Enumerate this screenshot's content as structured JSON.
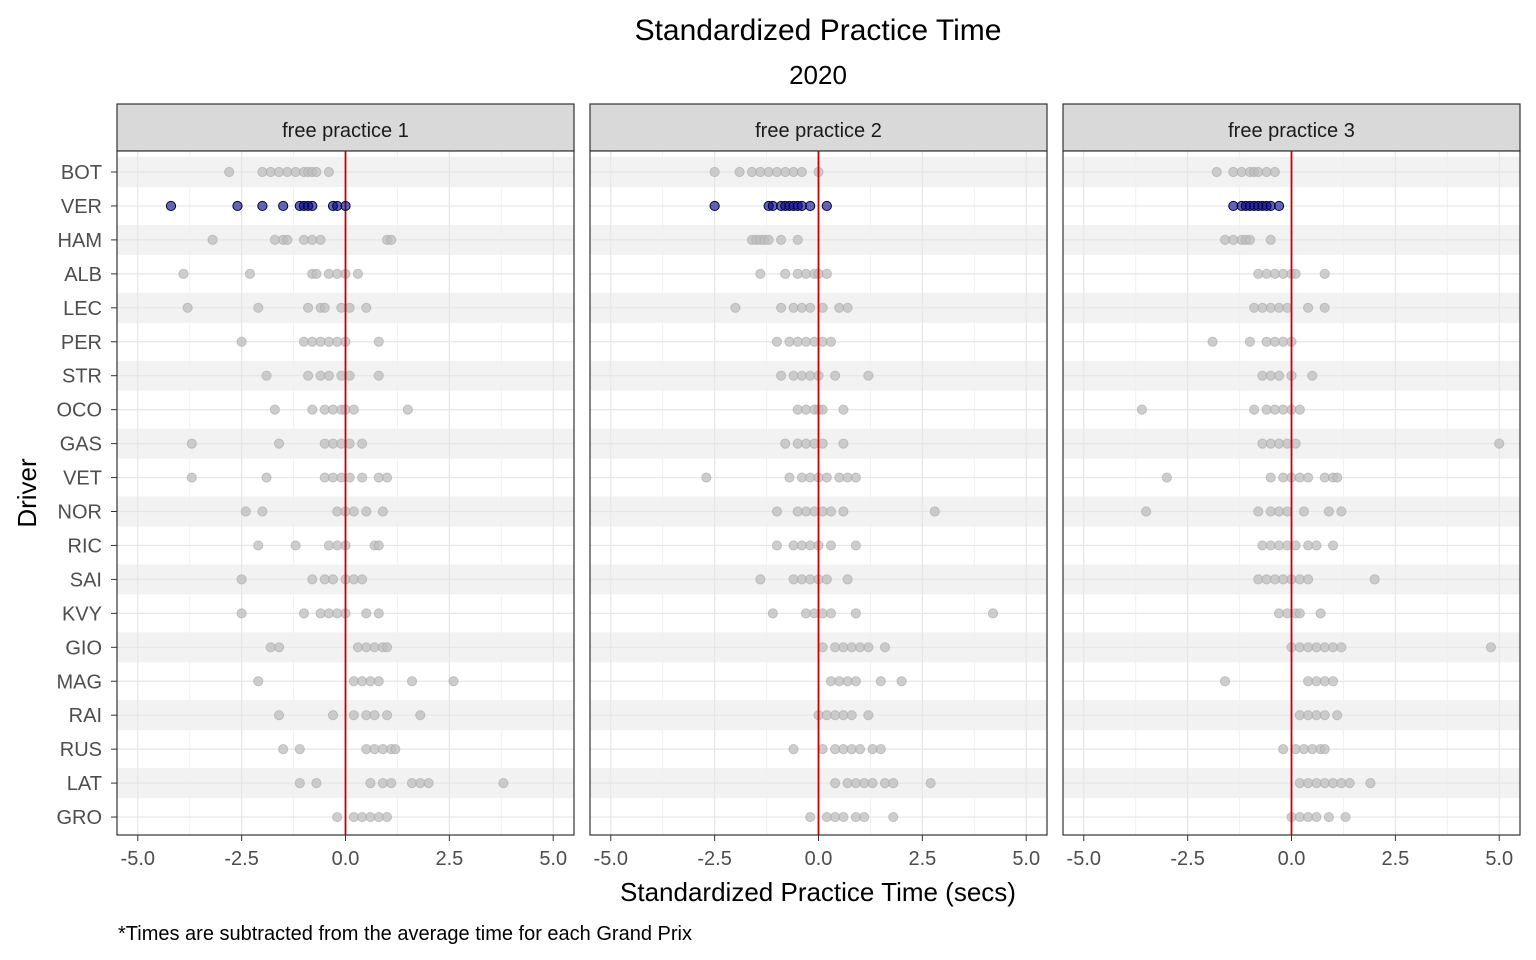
{
  "chart_data": {
    "type": "scatter",
    "title": "Standardized Practice Time",
    "subtitle": "2020",
    "xlabel": "Standardized Practice Time (secs)",
    "ylabel": "Driver",
    "caption": "*Times are subtracted from the average time for each Grand Prix",
    "xlim": [
      -5.5,
      5.5
    ],
    "x_ticks": [
      -5,
      -2.5,
      0,
      2.5,
      5
    ],
    "x_tick_labels": [
      "-5.0",
      "-2.5",
      "0.0",
      "2.5",
      "5.0"
    ],
    "reference_line_x": 0,
    "highlight_driver": "VER",
    "colors": {
      "highlight": "#00008b",
      "points": "#bdbdbd",
      "reference": "#cc0000",
      "strip": "#d9d9d9",
      "band": "#f2f2f2"
    },
    "drivers": [
      "BOT",
      "VER",
      "HAM",
      "ALB",
      "LEC",
      "PER",
      "STR",
      "OCO",
      "GAS",
      "VET",
      "NOR",
      "RIC",
      "SAI",
      "KVY",
      "GIO",
      "MAG",
      "RAI",
      "RUS",
      "LAT",
      "GRO"
    ],
    "facets": [
      {
        "label": "free practice 1",
        "points": {
          "BOT": [
            -2.8,
            -2,
            -1.8,
            -1.6,
            -1.4,
            -1.2,
            -1,
            -0.9,
            -0.8,
            -0.7,
            -0.4
          ],
          "VER": [
            -4.2,
            -2.6,
            -2,
            -1.5,
            -1.1,
            -1,
            -0.9,
            -0.8,
            -0.3,
            -0.2,
            0
          ],
          "HAM": [
            -3.2,
            -1.7,
            -1.5,
            -1.4,
            -1,
            -0.8,
            -0.6,
            1,
            1.1
          ],
          "ALB": [
            -3.9,
            -2.3,
            -0.8,
            -0.7,
            -0.4,
            -0.2,
            0,
            0.3
          ],
          "LEC": [
            -3.8,
            -2.1,
            -0.9,
            -0.6,
            -0.5,
            -0.1,
            0.1,
            0.5
          ],
          "PER": [
            -2.5,
            -1,
            -0.8,
            -0.6,
            -0.4,
            -0.2,
            0,
            0.8
          ],
          "STR": [
            -1.9,
            -0.9,
            -0.6,
            -0.4,
            -0.1,
            0.1,
            0.8
          ],
          "OCO": [
            -1.7,
            -0.8,
            -0.5,
            -0.3,
            -0.1,
            0,
            0.2,
            1.5
          ],
          "GAS": [
            -3.7,
            -1.6,
            -0.5,
            -0.3,
            -0.1,
            0.1,
            0.4
          ],
          "VET": [
            -3.7,
            -1.9,
            -0.5,
            -0.3,
            -0.1,
            0.1,
            0.4,
            0.8,
            1
          ],
          "NOR": [
            -2.4,
            -2,
            -0.2,
            0,
            0.2,
            0.5,
            0.9
          ],
          "RIC": [
            -2.1,
            -1.2,
            -0.4,
            -0.2,
            0,
            0.7,
            0.8
          ],
          "SAI": [
            -2.5,
            -0.8,
            -0.5,
            -0.3,
            0,
            0.2,
            0.4
          ],
          "KVY": [
            -2.5,
            -1,
            -0.6,
            -0.4,
            -0.2,
            0,
            0.5,
            0.8
          ],
          "GIO": [
            -1.8,
            -1.6,
            0.3,
            0.5,
            0.7,
            0.9,
            1
          ],
          "MAG": [
            -2.1,
            0.2,
            0.4,
            0.6,
            0.8,
            1.6,
            2.6
          ],
          "RAI": [
            -1.6,
            -0.3,
            0.2,
            0.5,
            0.7,
            1,
            1.8
          ],
          "RUS": [
            -1.5,
            -1.1,
            0.5,
            0.7,
            0.9,
            1.1,
            1.2
          ],
          "LAT": [
            -1.1,
            -0.7,
            0.6,
            0.9,
            1.1,
            1.6,
            1.8,
            2,
            3.8
          ],
          "GRO": [
            -0.2,
            0.2,
            0.4,
            0.6,
            0.8,
            1
          ]
        }
      },
      {
        "label": "free practice 2",
        "points": {
          "BOT": [
            -2.5,
            -1.9,
            -1.6,
            -1.4,
            -1.2,
            -1,
            -0.8,
            -0.6,
            -0.4,
            0
          ],
          "VER": [
            -2.5,
            -1.2,
            -1.1,
            -0.9,
            -0.8,
            -0.7,
            -0.6,
            -0.5,
            -0.4,
            -0.2,
            0.2
          ],
          "HAM": [
            -1.6,
            -1.5,
            -1.4,
            -1.3,
            -1.2,
            -0.9,
            -0.5
          ],
          "ALB": [
            -1.4,
            -0.8,
            -0.5,
            -0.3,
            -0.1,
            0,
            0.2
          ],
          "LEC": [
            -2,
            -0.9,
            -0.6,
            -0.4,
            -0.2,
            0.1,
            0.5,
            0.7
          ],
          "PER": [
            -1,
            -0.7,
            -0.5,
            -0.3,
            -0.1,
            0.1,
            0.3
          ],
          "STR": [
            -0.9,
            -0.6,
            -0.4,
            -0.2,
            0,
            0.4,
            1.2
          ],
          "OCO": [
            -0.5,
            -0.3,
            -0.1,
            0,
            0.1,
            0.6
          ],
          "GAS": [
            -0.8,
            -0.5,
            -0.3,
            -0.1,
            0.1,
            0.6
          ],
          "VET": [
            -2.7,
            -0.7,
            -0.4,
            -0.2,
            0,
            0.2,
            0.5,
            0.7,
            0.9
          ],
          "NOR": [
            -1,
            -0.5,
            -0.3,
            -0.1,
            0.1,
            0.3,
            0.6,
            2.8
          ],
          "RIC": [
            -1,
            -0.6,
            -0.4,
            -0.2,
            0,
            0.3,
            0.9
          ],
          "SAI": [
            -1.4,
            -0.6,
            -0.4,
            -0.2,
            0,
            0.2,
            0.7
          ],
          "KVY": [
            -1.1,
            -0.3,
            -0.1,
            0.1,
            0.3,
            0.9,
            4.2
          ],
          "GIO": [
            0.1,
            0.4,
            0.6,
            0.8,
            1,
            1.2,
            1.6
          ],
          "MAG": [
            0.3,
            0.5,
            0.7,
            0.9,
            1.5,
            2
          ],
          "RAI": [
            0,
            0.2,
            0.4,
            0.6,
            0.8,
            1.2
          ],
          "RUS": [
            -0.6,
            0.1,
            0.4,
            0.6,
            0.8,
            1,
            1.3,
            1.5
          ],
          "LAT": [
            0.4,
            0.7,
            0.9,
            1.1,
            1.3,
            1.6,
            1.8,
            2.7
          ],
          "GRO": [
            -0.2,
            0.2,
            0.4,
            0.6,
            0.9,
            1.1,
            1.8
          ]
        }
      },
      {
        "label": "free practice 3",
        "points": {
          "BOT": [
            -1.8,
            -1.4,
            -1.2,
            -1,
            -0.9,
            -0.8,
            -0.6,
            -0.4
          ],
          "VER": [
            -1.4,
            -1.2,
            -1.1,
            -1,
            -0.9,
            -0.8,
            -0.7,
            -0.6,
            -0.5,
            -0.3
          ],
          "HAM": [
            -1.6,
            -1.4,
            -1.2,
            -1.1,
            -1,
            -0.5
          ],
          "ALB": [
            -0.8,
            -0.6,
            -0.4,
            -0.2,
            0,
            0.1,
            0.8
          ],
          "LEC": [
            -0.9,
            -0.7,
            -0.5,
            -0.3,
            -0.1,
            0.4,
            0.8
          ],
          "PER": [
            -1.9,
            -1,
            -0.6,
            -0.4,
            -0.2,
            0
          ],
          "STR": [
            -0.7,
            -0.5,
            -0.3,
            0,
            0.5
          ],
          "OCO": [
            -3.6,
            -0.9,
            -0.6,
            -0.4,
            -0.2,
            0,
            0.2
          ],
          "GAS": [
            -0.7,
            -0.5,
            -0.3,
            -0.1,
            0.1,
            5
          ],
          "VET": [
            -3,
            -0.5,
            -0.2,
            0,
            0.2,
            0.4,
            0.8,
            1,
            1.1
          ],
          "NOR": [
            -3.5,
            -0.8,
            -0.5,
            -0.3,
            -0.1,
            0.3,
            0.9,
            1.2
          ],
          "RIC": [
            -0.7,
            -0.5,
            -0.3,
            -0.1,
            0.1,
            0.4,
            0.6,
            1
          ],
          "SAI": [
            -0.8,
            -0.6,
            -0.4,
            -0.2,
            0,
            0.2,
            0.4,
            2
          ],
          "KVY": [
            -0.3,
            -0.1,
            0.1,
            0.2,
            0.7
          ],
          "GIO": [
            0,
            0.2,
            0.4,
            0.6,
            0.8,
            1,
            1.2,
            4.8
          ],
          "MAG": [
            -1.6,
            0.4,
            0.6,
            0.8,
            1
          ],
          "RAI": [
            0.2,
            0.4,
            0.6,
            0.8,
            1.1
          ],
          "RUS": [
            -0.2,
            0.1,
            0.3,
            0.5,
            0.7,
            0.8
          ],
          "LAT": [
            0.2,
            0.4,
            0.6,
            0.8,
            1,
            1.2,
            1.4,
            1.9
          ],
          "GRO": [
            0,
            0.2,
            0.4,
            0.6,
            0.9,
            1.3
          ]
        }
      }
    ]
  }
}
